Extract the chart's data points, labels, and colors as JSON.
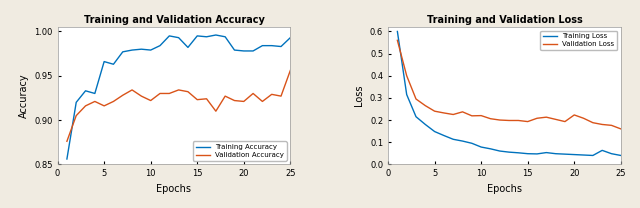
{
  "acc_title": "Training and Validation Accuracy",
  "loss_title": "Training and Validation Loss",
  "xlabel": "Epochs",
  "acc_ylabel": "Accuracy",
  "loss_ylabel": "Loss",
  "epochs": [
    1,
    2,
    3,
    4,
    5,
    6,
    7,
    8,
    9,
    10,
    11,
    12,
    13,
    14,
    15,
    16,
    17,
    18,
    19,
    20,
    21,
    22,
    23,
    24,
    25
  ],
  "train_acc": [
    0.856,
    0.92,
    0.933,
    0.93,
    0.966,
    0.963,
    0.977,
    0.979,
    0.98,
    0.979,
    0.984,
    0.995,
    0.993,
    0.982,
    0.995,
    0.994,
    0.996,
    0.994,
    0.979,
    0.978,
    0.978,
    0.984,
    0.984,
    0.983,
    0.993
  ],
  "val_acc": [
    0.876,
    0.905,
    0.916,
    0.921,
    0.916,
    0.921,
    0.928,
    0.934,
    0.927,
    0.922,
    0.93,
    0.93,
    0.934,
    0.932,
    0.923,
    0.924,
    0.91,
    0.927,
    0.922,
    0.921,
    0.93,
    0.921,
    0.929,
    0.927,
    0.956
  ],
  "train_loss": [
    0.6,
    0.315,
    0.215,
    0.18,
    0.148,
    0.13,
    0.113,
    0.105,
    0.095,
    0.078,
    0.07,
    0.06,
    0.055,
    0.052,
    0.048,
    0.047,
    0.053,
    0.048,
    0.046,
    0.044,
    0.042,
    0.04,
    0.063,
    0.048,
    0.04
  ],
  "val_loss": [
    0.56,
    0.4,
    0.295,
    0.265,
    0.24,
    0.232,
    0.225,
    0.237,
    0.219,
    0.22,
    0.206,
    0.2,
    0.198,
    0.198,
    0.193,
    0.208,
    0.213,
    0.203,
    0.193,
    0.223,
    0.208,
    0.188,
    0.18,
    0.176,
    0.16
  ],
  "train_color": "#0072BD",
  "val_color": "#D95319",
  "fig_facecolor": "#F0EBE1",
  "axes_facecolor": "#FFFFFF",
  "acc_ylim": [
    0.85,
    1.005
  ],
  "acc_yticks": [
    0.85,
    0.9,
    0.95,
    1.0
  ],
  "loss_ylim": [
    0.0,
    0.62
  ],
  "loss_yticks": [
    0.0,
    0.1,
    0.2,
    0.3,
    0.4,
    0.5,
    0.6
  ],
  "xlim": [
    0,
    25
  ],
  "xticks": [
    0,
    5,
    10,
    15,
    20,
    25
  ]
}
